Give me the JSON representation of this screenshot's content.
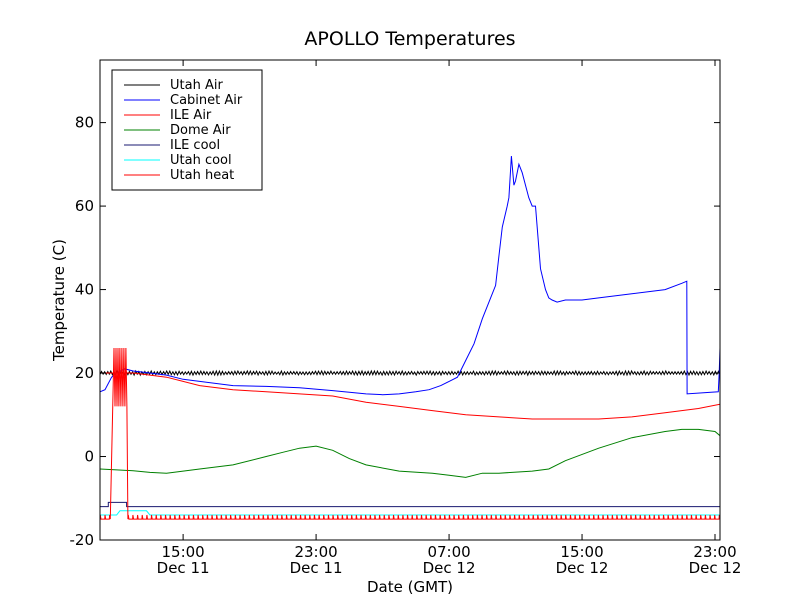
{
  "chart_data": {
    "type": "line",
    "title": "APOLLO Temperatures",
    "xlabel": "Date (GMT)",
    "ylabel": "Temperature (C)",
    "x_unit": "hours since Dec 11 10:00 GMT",
    "xlim": [
      0,
      37.3
    ],
    "ylim": [
      -20,
      95
    ],
    "yticks": [
      -20,
      0,
      20,
      40,
      60,
      80
    ],
    "xticks": [
      {
        "x": 5,
        "time": "15:00",
        "date": "Dec 11"
      },
      {
        "x": 13,
        "time": "23:00",
        "date": "Dec 11"
      },
      {
        "x": 21,
        "time": "07:00",
        "date": "Dec 12"
      },
      {
        "x": 29,
        "time": "15:00",
        "date": "Dec 12"
      },
      {
        "x": 37,
        "time": "23:00",
        "date": "Dec 12"
      }
    ],
    "legend_position": "top-left",
    "series": [
      {
        "name": "Utah Air",
        "color": "#000000",
        "style": "noisy",
        "x": [
          0,
          37.3
        ],
        "y": [
          20,
          20
        ],
        "noise": 0.5
      },
      {
        "name": "Cabinet Air",
        "color": "#0000ff",
        "style": "line",
        "x": [
          0,
          0.3,
          0.7,
          1.0,
          1.5,
          2.0,
          3.0,
          4.0,
          5.0,
          6.0,
          8.0,
          10.0,
          12.0,
          14.0,
          16.0,
          17.0,
          18.0,
          19.0,
          19.8,
          20.5,
          21.0,
          21.5,
          22.0,
          22.5,
          23.0,
          23.5,
          23.8,
          24.0,
          24.2,
          24.5,
          24.6,
          24.75,
          24.9,
          25.0,
          25.2,
          25.4,
          25.6,
          25.8,
          26.0,
          26.2,
          26.5,
          26.8,
          27.0,
          27.2,
          27.5,
          28.0,
          29.0,
          30.0,
          32.0,
          34.0,
          35.0,
          35.3,
          35.32,
          37.2,
          37.25,
          37.3
        ],
        "y": [
          15.5,
          16,
          19,
          20,
          21,
          20.5,
          20,
          19.5,
          18.5,
          18,
          17,
          16.8,
          16.5,
          15.8,
          15,
          14.8,
          15,
          15.5,
          16,
          17,
          18,
          19,
          23,
          27,
          33,
          38,
          41,
          48,
          55,
          60,
          62,
          72,
          65,
          66,
          70,
          68,
          65,
          62,
          60,
          60,
          45,
          40,
          38,
          37.5,
          37,
          37.5,
          37.5,
          38,
          39,
          40,
          41.5,
          42,
          15,
          15.5,
          20,
          26
        ]
      },
      {
        "name": "ILE Air",
        "color": "#ff0000",
        "style": "line",
        "x": [
          0,
          1.0,
          2.0,
          3.0,
          4.0,
          5.0,
          6.0,
          8.0,
          10.0,
          12.0,
          14.0,
          16.0,
          18.0,
          20.0,
          22.0,
          24.0,
          26.0,
          28.0,
          30.0,
          32.0,
          34.0,
          36.0,
          37.3
        ],
        "y": [
          20,
          20,
          20,
          19.5,
          19,
          18,
          17,
          16,
          15.5,
          15,
          14.5,
          13,
          12,
          11,
          10,
          9.5,
          9,
          9,
          9,
          9.5,
          10.5,
          11.5,
          12.5
        ]
      },
      {
        "name": "Dome Air",
        "color": "#008000",
        "style": "line",
        "x": [
          0,
          1,
          2,
          3,
          4,
          5,
          6,
          8,
          10,
          11,
          12,
          13,
          14,
          15,
          16,
          18,
          20,
          21,
          22,
          23,
          24,
          26,
          27,
          28,
          30,
          32,
          34,
          35,
          36,
          37,
          37.3
        ],
        "y": [
          -3,
          -3.2,
          -3.4,
          -3.8,
          -4,
          -3.5,
          -3,
          -2,
          0,
          1,
          2,
          2.5,
          1.5,
          -0.5,
          -2,
          -3.5,
          -4,
          -4.5,
          -5,
          -4,
          -4,
          -3.5,
          -3,
          -1,
          2,
          4.5,
          6,
          6.5,
          6.5,
          6,
          5
        ]
      },
      {
        "name": "ILE cool",
        "color": "#191970",
        "style": "line",
        "x": [
          0,
          0.5,
          0.5,
          1.6,
          1.6,
          37.3
        ],
        "y": [
          -12,
          -12,
          -11,
          -11,
          -12,
          -12
        ]
      },
      {
        "name": "Utah cool",
        "color": "#00ffff",
        "style": "line",
        "x": [
          0,
          1.0,
          1.2,
          2.8,
          3.0,
          37.3
        ],
        "y": [
          -14,
          -14,
          -13,
          -13,
          -14,
          -14
        ]
      },
      {
        "name": "Utah heat",
        "color": "#ff0000",
        "style": "pulses",
        "x": [
          0,
          37.3
        ],
        "y": [
          -15,
          -15
        ],
        "pulse_high": -14,
        "burst": {
          "x0": 0.6,
          "x1": 1.6,
          "low": 12,
          "high": 26
        }
      }
    ]
  }
}
